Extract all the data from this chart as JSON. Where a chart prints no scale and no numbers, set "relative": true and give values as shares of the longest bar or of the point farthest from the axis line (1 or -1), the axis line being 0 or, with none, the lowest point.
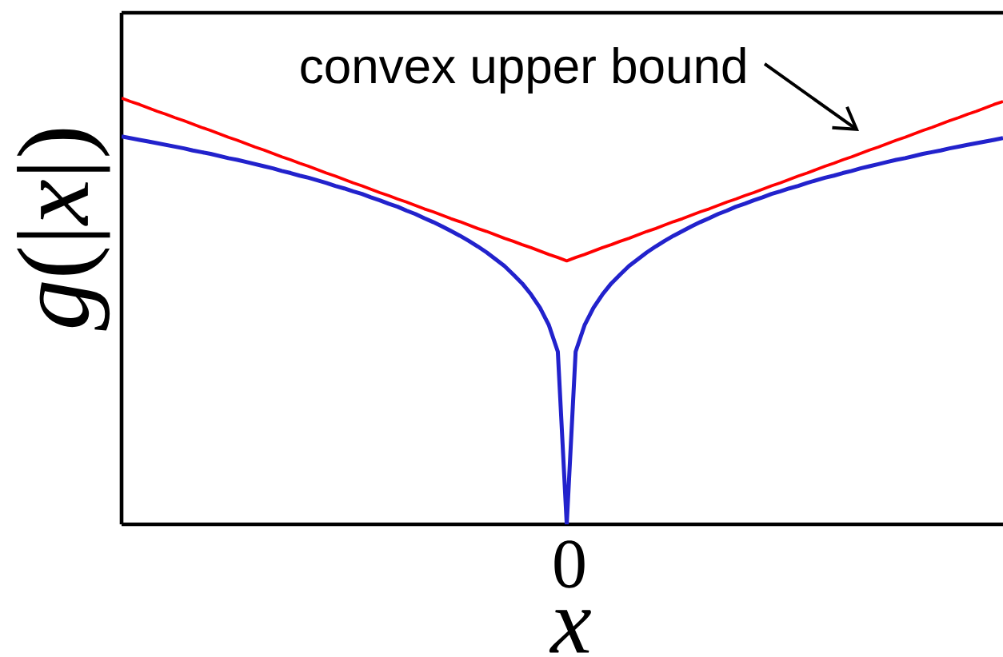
{
  "chart_data": {
    "type": "line",
    "xlabel": "x",
    "ylabel": "*g*(|*x*|)",
    "relative": true,
    "categories": [
      null,
      null,
      null,
      null,
      null,
      null,
      null,
      null,
      null,
      null,
      null,
      null,
      null,
      null,
      null,
      null,
      null,
      null,
      null,
      null,
      null,
      null,
      null,
      null,
      null,
      null,
      null,
      null,
      null,
      null,
      null,
      null,
      null,
      null,
      null,
      null,
      null,
      null,
      null,
      null,
      null,
      null,
      null,
      null,
      null,
      null,
      null,
      null,
      null,
      null,
      null,
      null,
      null,
      null,
      null,
      null,
      null,
      null,
      null,
      null,
      null,
      null,
      null,
      null,
      null,
      null,
      null,
      null,
      null,
      null,
      null,
      null,
      null,
      null,
      null,
      null,
      null,
      null,
      null,
      null,
      null,
      null,
      null,
      null,
      null,
      null,
      null,
      null,
      null,
      null,
      null,
      null,
      null,
      null,
      null,
      null,
      null,
      null,
      null,
      null
    ],
    "series": [
      {
        "color": "#2222cc",
        "values": [
          0.91,
          0.906,
          0.902,
          0.898,
          0.894,
          0.89,
          0.886,
          0.882,
          0.877,
          0.873,
          0.869,
          0.864,
          0.859,
          0.855,
          0.85,
          0.845,
          0.84,
          0.835,
          0.829,
          0.824,
          0.818,
          0.813,
          0.807,
          0.801,
          0.794,
          0.788,
          0.781,
          0.775,
          0.767,
          0.76,
          0.752,
          0.745,
          0.736,
          0.728,
          0.718,
          0.709,
          0.699,
          0.688,
          0.677,
          0.665,
          0.652,
          0.638,
          0.622,
          0.606,
          0.586,
          0.565,
          0.539,
          0.508,
          0.467,
          0.405,
          0,
          0.405,
          0.467,
          0.508,
          0.539,
          0.565,
          0.586,
          0.606,
          0.622,
          0.638,
          0.652,
          0.665,
          0.677,
          0.688,
          0.699,
          0.709,
          0.718,
          0.728,
          0.736,
          0.745,
          0.752,
          0.76,
          0.767,
          0.775,
          0.781,
          0.788,
          0.794,
          0.801,
          0.807,
          0.813,
          0.818,
          0.824,
          0.829,
          0.835,
          0.84,
          0.845,
          0.85,
          0.855,
          0.859,
          0.864,
          0.869,
          0.873,
          0.877,
          0.882,
          0.886,
          0.89,
          0.894,
          0.898,
          0.902,
          0.906
        ]
      },
      {
        "color": "#ff0000",
        "values": [
          1.0,
          0.992,
          0.985,
          0.977,
          0.969,
          0.962,
          0.954,
          0.947,
          0.939,
          0.931,
          0.924,
          0.916,
          0.908,
          0.901,
          0.893,
          0.885,
          0.878,
          0.87,
          0.862,
          0.855,
          0.847,
          0.84,
          0.832,
          0.824,
          0.817,
          0.809,
          0.801,
          0.794,
          0.786,
          0.778,
          0.771,
          0.763,
          0.756,
          0.748,
          0.74,
          0.733,
          0.725,
          0.717,
          0.71,
          0.702,
          0.694,
          0.687,
          0.679,
          0.671,
          0.664,
          0.656,
          0.649,
          0.641,
          0.633,
          0.626,
          0.618,
          0.626,
          0.633,
          0.641,
          0.649,
          0.656,
          0.664,
          0.671,
          0.679,
          0.687,
          0.694,
          0.702,
          0.71,
          0.717,
          0.725,
          0.733,
          0.74,
          0.748,
          0.756,
          0.763,
          0.771,
          0.778,
          0.786,
          0.794,
          0.801,
          0.809,
          0.817,
          0.824,
          0.832,
          0.84,
          0.847,
          0.855,
          0.862,
          0.87,
          0.878,
          0.885,
          0.893,
          0.901,
          0.908,
          0.916,
          0.924,
          0.931,
          0.939,
          0.947,
          0.954,
          0.962,
          0.969,
          0.977,
          0.985,
          0.992
        ]
      }
    ],
    "annotations": [
      "convex upper bound",
      "0"
    ]
  }
}
